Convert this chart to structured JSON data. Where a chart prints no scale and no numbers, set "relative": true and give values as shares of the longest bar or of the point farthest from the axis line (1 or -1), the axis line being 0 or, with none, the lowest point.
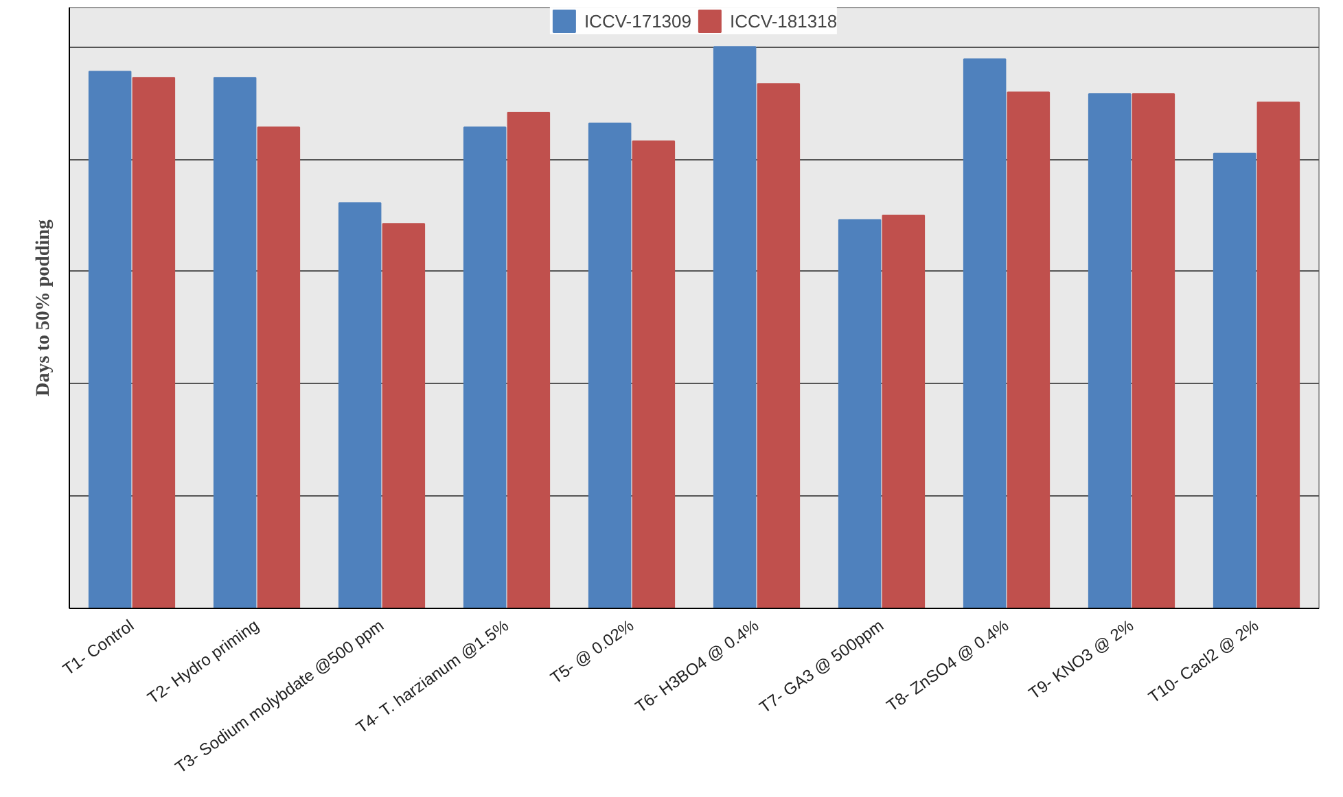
{
  "chart_data": {
    "type": "bar",
    "relative": true,
    "ylabel": "Days to 50% podding",
    "categories": [
      "T1- Control",
      "T2- Hydro priming",
      "T3- Sodium molybdate @500 ppm",
      "T4- T. harzianum @1.5%",
      "T5- @ 0.02%",
      "T6- H3BO4 @ 0.4%",
      "T7- GA3 @ 500ppm",
      "T8- ZnSO4 @ 0.4%",
      "T9- KNO3 @ 2%",
      "T10- Cacl2 @ 2%"
    ],
    "series": [
      {
        "name": "ICCV-171309",
        "color": "#4f81bd",
        "values": [
          0.956,
          0.945,
          0.722,
          0.857,
          0.864,
          1,
          0.692,
          0.978,
          0.916,
          0.81
        ]
      },
      {
        "name": "ICCV-181318",
        "color": "#c0504d",
        "values": [
          0.945,
          0.857,
          0.685,
          0.883,
          0.832,
          0.934,
          0.7,
          0.919,
          0.916,
          0.901
        ]
      }
    ],
    "grid": "y",
    "legend": "top"
  }
}
